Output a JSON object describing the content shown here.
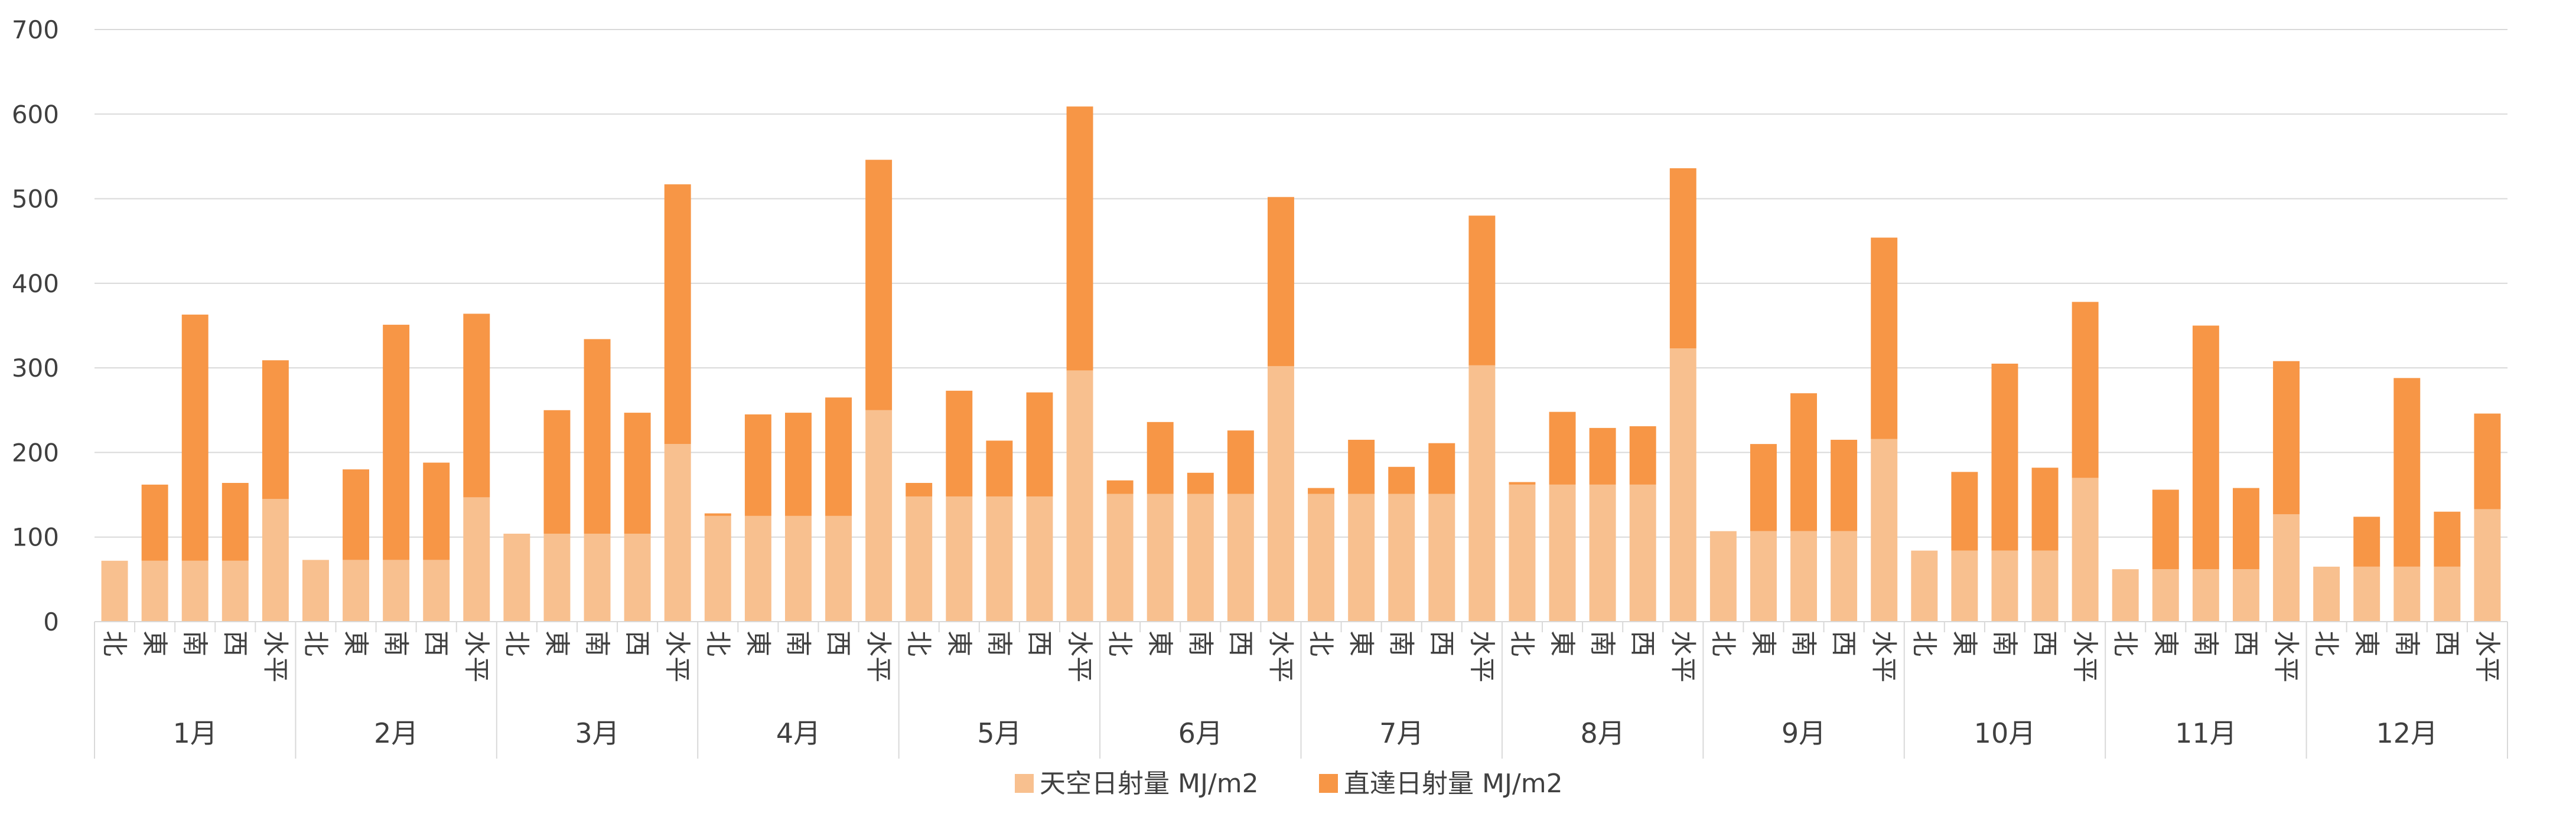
{
  "chart_data": {
    "type": "bar",
    "stacked": true,
    "title": "",
    "xlabel": "",
    "ylabel": "",
    "ylim": [
      0,
      700
    ],
    "yticks": [
      0,
      100,
      200,
      300,
      400,
      500,
      600,
      700
    ],
    "grid": true,
    "legend_position": "bottom",
    "groups": [
      "1月",
      "2月",
      "3月",
      "4月",
      "5月",
      "6月",
      "7月",
      "8月",
      "9月",
      "10月",
      "11月",
      "12月"
    ],
    "subcategories": [
      "北",
      "東",
      "南",
      "西",
      "水平"
    ],
    "series": [
      {
        "name": "天空日射量 MJ/m2",
        "color": "#F8C08F",
        "values": [
          72,
          72,
          72,
          72,
          145,
          73,
          73,
          73,
          73,
          147,
          104,
          104,
          104,
          104,
          210,
          125,
          125,
          125,
          125,
          250,
          148,
          148,
          148,
          148,
          297,
          151,
          151,
          151,
          151,
          302,
          151,
          151,
          151,
          151,
          303,
          162,
          162,
          162,
          162,
          323,
          107,
          107,
          107,
          107,
          216,
          84,
          84,
          84,
          84,
          170,
          62,
          62,
          62,
          62,
          127,
          65,
          65,
          65,
          65,
          133
        ]
      },
      {
        "name": "直達日射量 MJ/m2",
        "color": "#F79646",
        "values": [
          0,
          90,
          291,
          92,
          164,
          0,
          107,
          278,
          115,
          217,
          0,
          146,
          230,
          143,
          307,
          3,
          120,
          122,
          140,
          296,
          16,
          125,
          66,
          123,
          312,
          16,
          85,
          25,
          75,
          200,
          7,
          64,
          32,
          60,
          177,
          3,
          86,
          67,
          69,
          213,
          0,
          103,
          163,
          108,
          238,
          0,
          93,
          221,
          98,
          208,
          0,
          94,
          288,
          96,
          181,
          0,
          59,
          223,
          65,
          113
        ]
      }
    ]
  }
}
